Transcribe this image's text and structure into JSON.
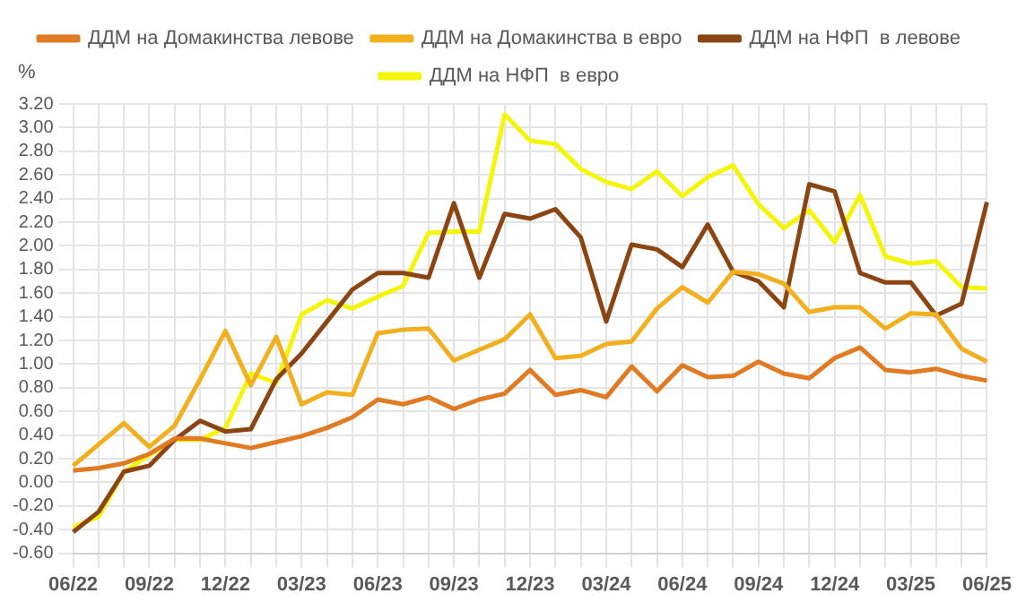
{
  "chart_data": {
    "type": "line",
    "ylabel": "%",
    "categories": [
      "06/22",
      null,
      null,
      "09/22",
      null,
      null,
      "12/22",
      null,
      null,
      "03/23",
      null,
      null,
      "06/23",
      null,
      null,
      "09/23",
      null,
      null,
      "12/23",
      null,
      null,
      "03/24",
      null,
      null,
      "06/24",
      null,
      null,
      "09/24",
      null,
      null,
      "12/24",
      null,
      null,
      "03/25",
      null,
      null,
      "06/25"
    ],
    "series": [
      {
        "name": "ДДМ на Домакинства левове",
        "color": "#e07b24",
        "values": [
          0.1,
          0.12,
          0.16,
          0.24,
          0.37,
          0.37,
          0.33,
          0.29,
          0.34,
          0.39,
          0.46,
          0.55,
          0.7,
          0.66,
          0.72,
          0.62,
          0.7,
          0.75,
          0.95,
          0.74,
          0.78,
          0.72,
          0.98,
          0.77,
          0.99,
          0.89,
          0.9,
          1.02,
          0.92,
          0.88,
          1.05,
          1.14,
          0.95,
          0.93,
          0.96,
          0.9,
          0.86
        ]
      },
      {
        "name": "ДДМ на Домакинства в евро",
        "color": "#f2b01e",
        "values": [
          0.14,
          0.32,
          0.5,
          0.3,
          0.48,
          0.87,
          1.28,
          0.82,
          1.23,
          0.66,
          0.76,
          0.74,
          1.26,
          1.29,
          1.3,
          1.03,
          1.12,
          1.21,
          1.42,
          1.05,
          1.07,
          1.17,
          1.19,
          1.47,
          1.65,
          1.52,
          1.78,
          1.76,
          1.68,
          1.44,
          1.48,
          1.48,
          1.3,
          1.43,
          1.42,
          1.13,
          1.02
        ]
      },
      {
        "name": "ДДМ на НФП  в левове",
        "color": "#8b4513",
        "values": [
          -0.42,
          -0.25,
          0.09,
          0.14,
          0.36,
          0.52,
          0.43,
          0.45,
          0.87,
          1.09,
          1.36,
          1.63,
          1.77,
          1.77,
          1.73,
          2.36,
          1.73,
          2.27,
          2.23,
          2.31,
          2.07,
          1.36,
          2.01,
          1.97,
          1.82,
          2.18,
          1.78,
          1.7,
          1.48,
          2.52,
          2.46,
          1.77,
          1.69,
          1.69,
          1.41,
          1.51,
          2.37
        ]
      },
      {
        "name": "ДДМ на НФП  в евро",
        "color": "#f5f50a",
        "values": [
          -0.38,
          -0.29,
          0.09,
          0.23,
          0.36,
          0.36,
          0.46,
          0.92,
          0.84,
          1.42,
          1.54,
          1.47,
          1.57,
          1.66,
          2.11,
          2.12,
          2.12,
          3.11,
          2.89,
          2.86,
          2.65,
          2.54,
          2.48,
          2.63,
          2.42,
          2.58,
          2.68,
          2.35,
          2.15,
          2.3,
          2.03,
          2.43,
          1.91,
          1.85,
          1.87,
          1.65,
          1.64
        ]
      }
    ],
    "ylim": [
      -0.6,
      3.2
    ],
    "yticks": [
      {
        "value": -0.6,
        "label": "-0.60"
      },
      {
        "value": -0.4,
        "label": "-0.40"
      },
      {
        "value": -0.2,
        "label": "-0.20"
      },
      {
        "value": 0,
        "label": "0.00"
      },
      {
        "value": 0.2,
        "label": "0.20"
      },
      {
        "value": 0.4,
        "label": "0.40"
      },
      {
        "value": 0.6,
        "label": "0.60"
      },
      {
        "value": 0.8,
        "label": "0.80"
      },
      {
        "value": 1,
        "label": "1.00"
      },
      {
        "value": 1.2,
        "label": "1.20"
      },
      {
        "value": 1.4,
        "label": "1.40"
      },
      {
        "value": 1.6,
        "label": "1.60"
      },
      {
        "value": 1.8,
        "label": "1.80"
      },
      {
        "value": 2,
        "label": "2.00"
      },
      {
        "value": 2.2,
        "label": "2.20"
      },
      {
        "value": 2.4,
        "label": "2.40"
      },
      {
        "value": 2.6,
        "label": "2.60"
      },
      {
        "value": 2.8,
        "label": "2.80"
      },
      {
        "value": 3,
        "label": "3.00"
      },
      {
        "value": 3.2,
        "label": "3.20"
      }
    ],
    "grid": true,
    "legend": "top",
    "marker": "none",
    "line_style": "solid"
  }
}
